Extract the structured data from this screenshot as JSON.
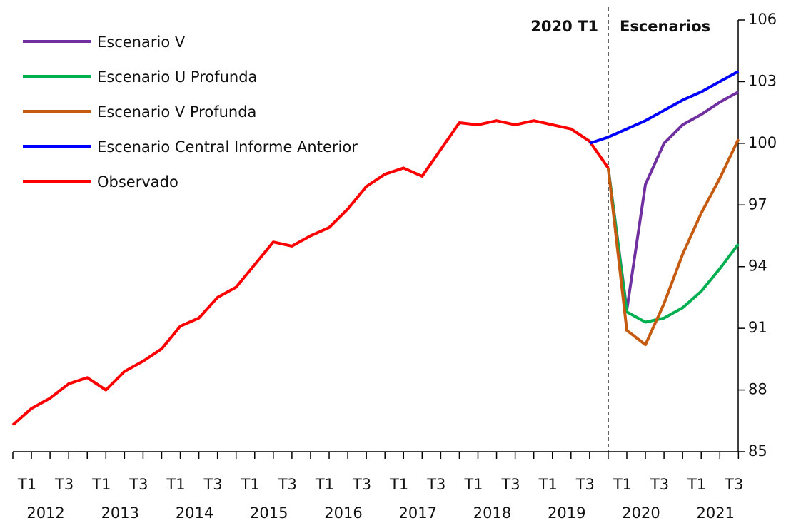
{
  "chart_data": {
    "type": "line",
    "categories": [
      "T1",
      null,
      "T3",
      null,
      "T1",
      null,
      "T3",
      null,
      "T1",
      null,
      "T3",
      null,
      "T1",
      null,
      "T3",
      null,
      "T1",
      null,
      "T3",
      null,
      "T1",
      null,
      "T3",
      null,
      "T1",
      null,
      "T3",
      null,
      "T1",
      null,
      "T3",
      null,
      "T1",
      null,
      "T3",
      null,
      "T1",
      null,
      "T3",
      null
    ],
    "year_labels": [
      "2012",
      "2013",
      "2014",
      "2015",
      "2016",
      "2017",
      "2018",
      "2019",
      "2020",
      "2021"
    ],
    "annotations": [
      "2020 T1",
      "Escenarios"
    ],
    "ylim": [
      85,
      106
    ],
    "yticks": [
      85,
      88,
      91,
      94,
      97,
      100,
      103,
      106
    ],
    "legend": "upper left",
    "series": [
      {
        "name": "Escenario V",
        "color": "#7030a0",
        "values": [
          null,
          null,
          null,
          null,
          null,
          null,
          null,
          null,
          null,
          null,
          null,
          null,
          null,
          null,
          null,
          null,
          null,
          null,
          null,
          null,
          null,
          null,
          null,
          null,
          null,
          null,
          null,
          null,
          null,
          null,
          null,
          null,
          98.8,
          91.9,
          98.0,
          100.0,
          100.9,
          101.4,
          102.0,
          102.5
        ]
      },
      {
        "name": "Escenario U Profunda",
        "color": "#00b050",
        "values": [
          null,
          null,
          null,
          null,
          null,
          null,
          null,
          null,
          null,
          null,
          null,
          null,
          null,
          null,
          null,
          null,
          null,
          null,
          null,
          null,
          null,
          null,
          null,
          null,
          null,
          null,
          null,
          null,
          null,
          null,
          null,
          null,
          98.8,
          91.8,
          91.3,
          91.5,
          92.0,
          92.8,
          93.9,
          95.1
        ]
      },
      {
        "name": "Escenario V Profunda",
        "color": "#c55a11",
        "values": [
          null,
          null,
          null,
          null,
          null,
          null,
          null,
          null,
          null,
          null,
          null,
          null,
          null,
          null,
          null,
          null,
          null,
          null,
          null,
          null,
          null,
          null,
          null,
          null,
          null,
          null,
          null,
          null,
          null,
          null,
          null,
          null,
          98.8,
          90.9,
          90.2,
          92.2,
          94.6,
          96.6,
          98.3,
          100.2
        ]
      },
      {
        "name": "Escenario Central Informe Anterior",
        "color": "#0000ff",
        "values": [
          null,
          null,
          null,
          null,
          null,
          null,
          null,
          null,
          null,
          null,
          null,
          null,
          null,
          null,
          null,
          null,
          null,
          null,
          null,
          null,
          null,
          null,
          null,
          null,
          null,
          null,
          null,
          null,
          null,
          null,
          null,
          100.0,
          100.3,
          100.7,
          101.1,
          101.6,
          102.1,
          102.5,
          103.0,
          103.5
        ]
      },
      {
        "name": "Observado",
        "color": "#ff0000",
        "values": [
          86.3,
          87.1,
          87.6,
          88.3,
          88.6,
          88.0,
          88.9,
          89.4,
          90.0,
          91.1,
          91.5,
          92.5,
          93.0,
          94.1,
          95.2,
          95.0,
          95.5,
          95.9,
          96.8,
          97.9,
          98.5,
          98.8,
          98.4,
          99.7,
          101.0,
          100.9,
          101.1,
          100.9,
          101.1,
          100.9,
          100.7,
          100.1,
          98.8,
          null,
          null,
          null,
          null,
          null,
          null,
          null
        ]
      }
    ]
  }
}
